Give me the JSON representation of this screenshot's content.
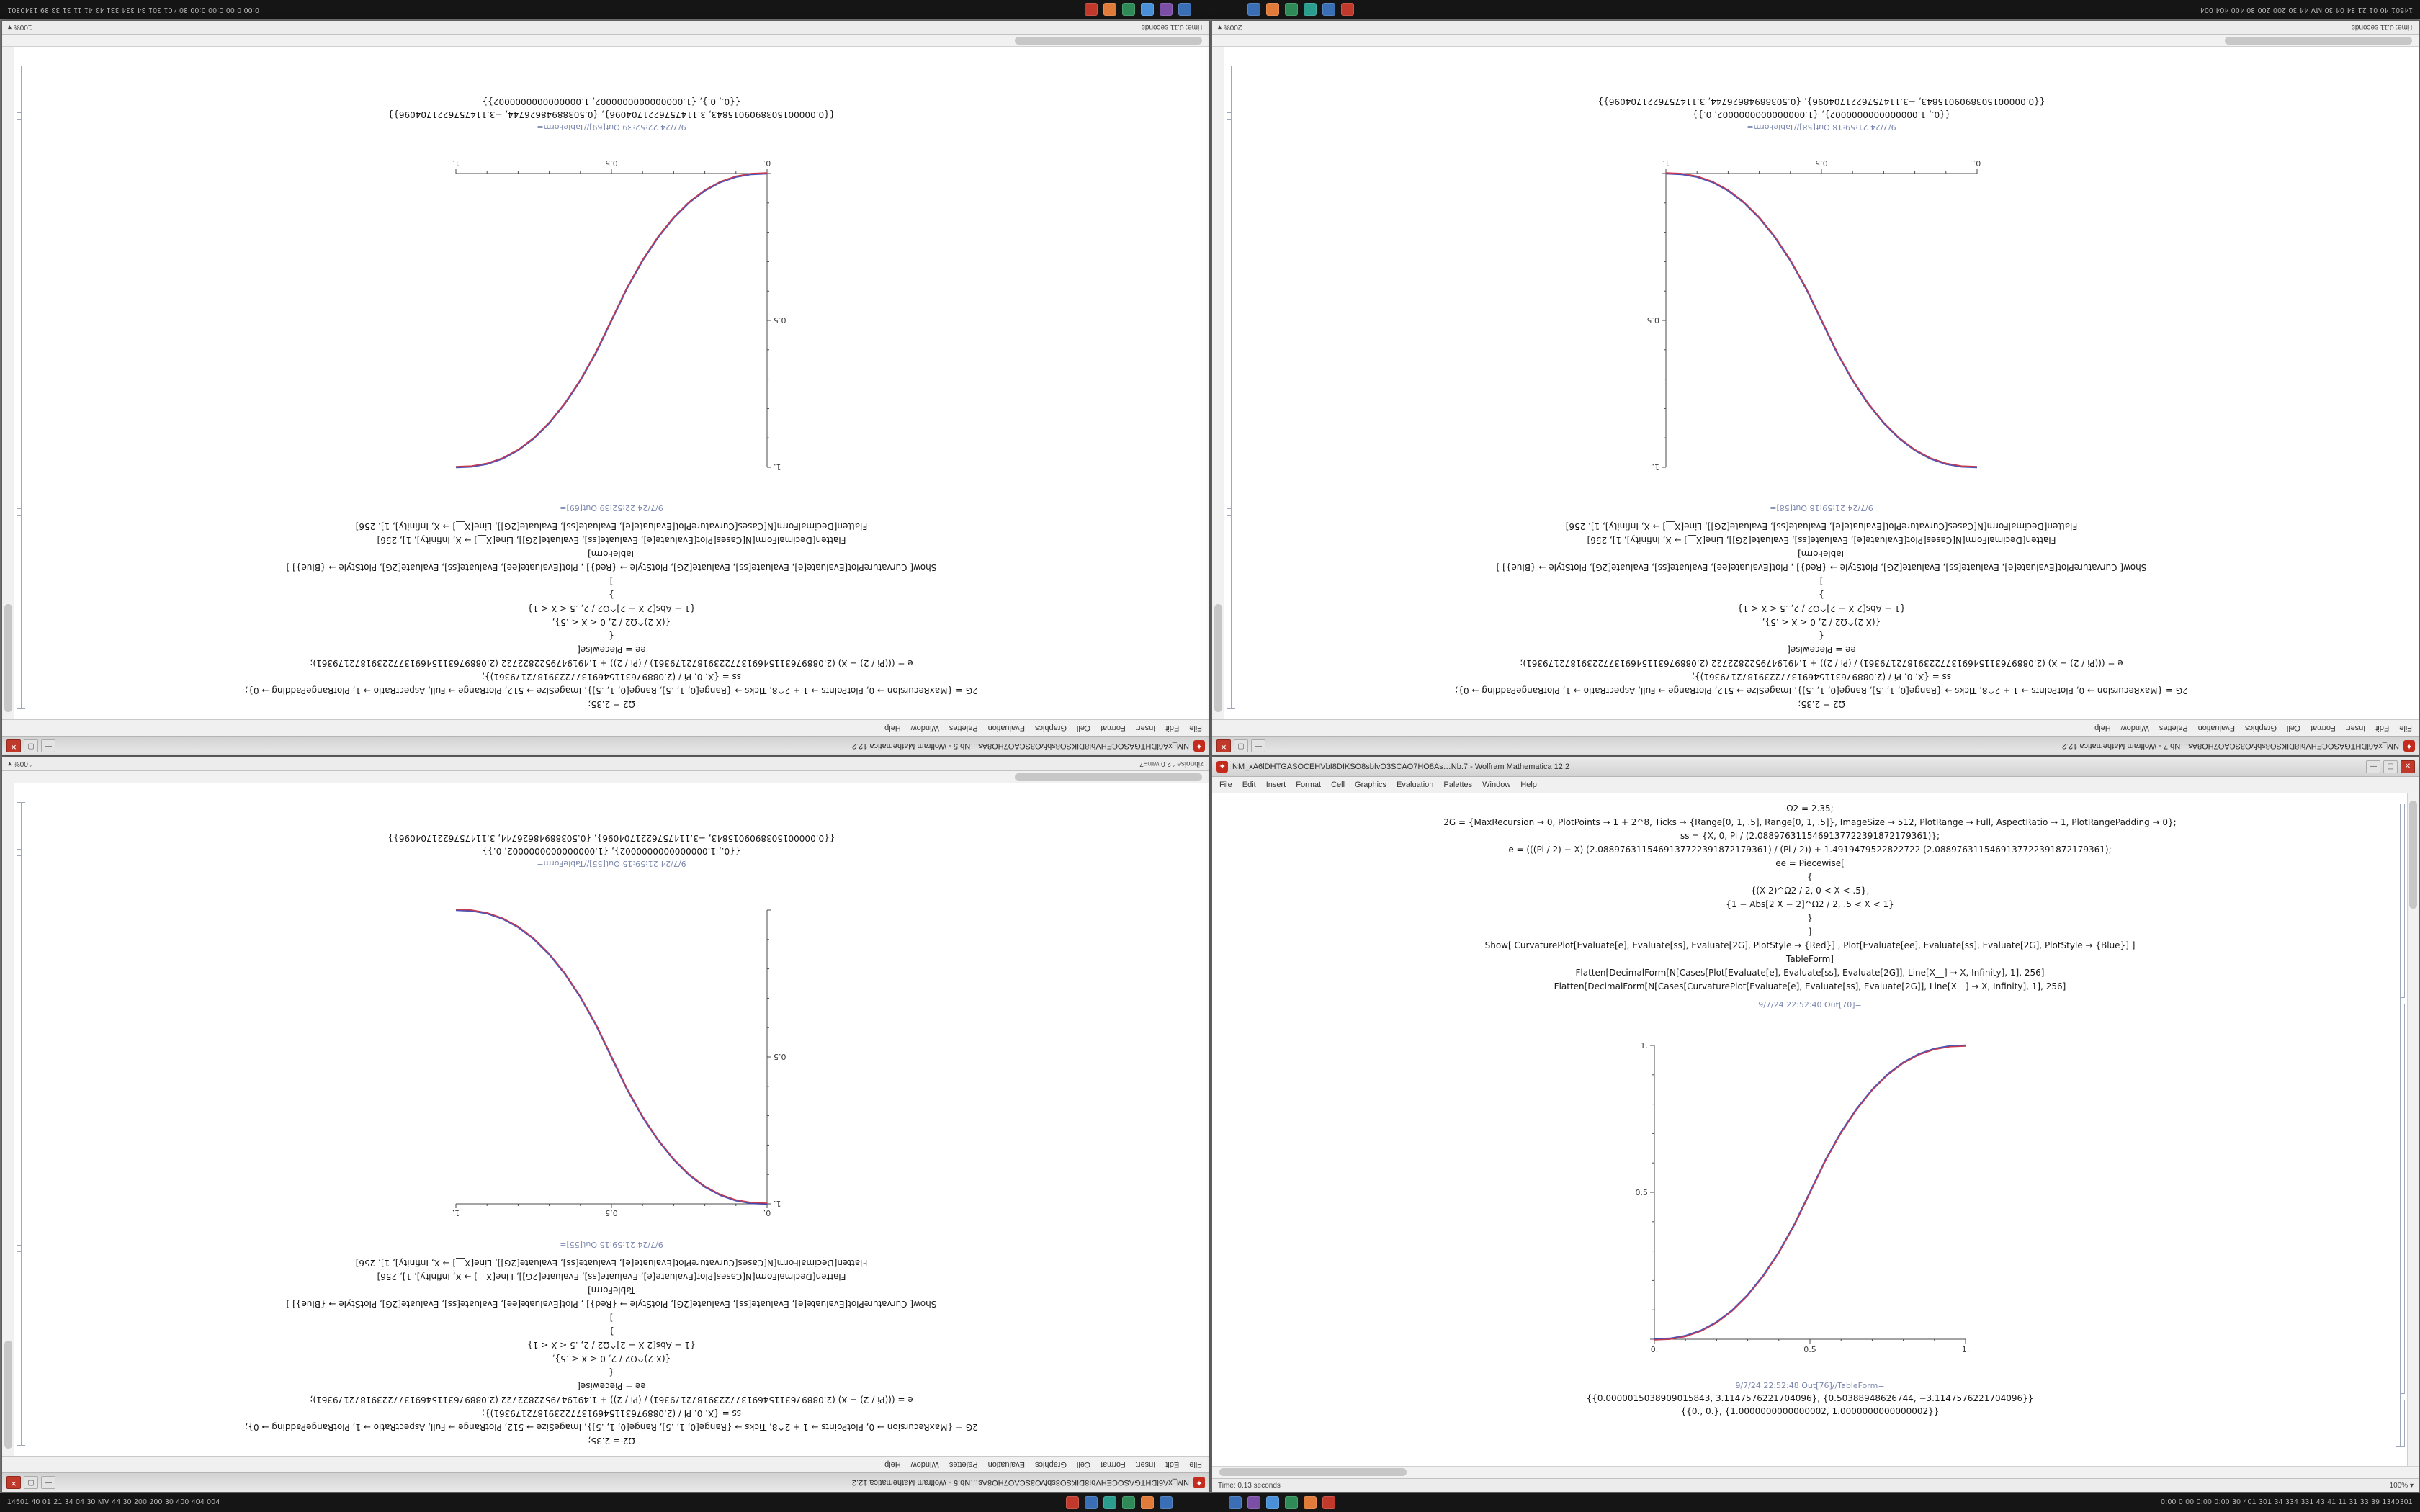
{
  "taskbar": {
    "left_text": "14501 40 01 21 34 04 30 MV 44 30 200 200 30 400 404 004",
    "right_text": "0:00 0:00 0:00 0:00 30 401 301 34 334 331 43 41 11 31 33 39 1340301",
    "clusters": [
      [
        "#c0392b",
        "#3b6fb5",
        "#2a9d8f",
        "#2e8b57",
        "#e07b39",
        "#3b6fb5"
      ],
      [
        "#3b6fb5",
        "#7b4fa6",
        "#4a90d9",
        "#2e8b57",
        "#e07b39",
        "#c0392b"
      ]
    ]
  },
  "menu": [
    "File",
    "Edit",
    "Insert",
    "Format",
    "Cell",
    "Graphics",
    "Evaluation",
    "Palettes",
    "Window",
    "Help"
  ],
  "shared_code": [
    "Ω2 = 2.35;",
    "2G = {MaxRecursion → 0, PlotPoints → 1 + 2^8, Ticks → {Range[0, 1, .5], Range[0, 1, .5]}, ImageSize → 512, PlotRange → Full, AspectRatio → 1, PlotRangePadding → 0};",
    "ss = {X, 0, Pi / (2.0889763115469137722391872179361)};",
    "e = (((Pi / 2) − X) (2.0889763115469137722391872179361) / (Pi / 2)) + 1.4919479522822722 (2.0889763115469137722391872179361);",
    "ee = Piecewise[",
    "{",
    "{(X 2)^Ω2 / 2, 0 < X < .5},",
    "{1 − Abs[2 X − 2]^Ω2 / 2, .5 < X < 1}",
    "}",
    "]",
    "Show[ CurvaturePlot[Evaluate[e], Evaluate[ss], Evaluate[2G], PlotStyle → {Red}] , Plot[Evaluate[ee], Evaluate[ss], Evaluate[2G], PlotStyle → {Blue}] ]",
    "TableForm]",
    "Flatten[DecimalForm[N[Cases[Plot[Evaluate[e], Evaluate[ss], Evaluate[2G]], Line[X__] → X, Infinity], 1], 256]",
    "Flatten[DecimalForm[N[Cases[CurvaturePlot[Evaluate[e], Evaluate[ss], Evaluate[2G]], Line[X__] → X, Infinity], 1], 256]"
  ],
  "windows": [
    {
      "position": "top-left",
      "flipped": true,
      "title": "NM_xA6lDHTGASOCEHVbI8DIKSO8sbfvO3SCAO7HO8As…Nb.5 - Wolfram Mathematica 12.2",
      "out_label": "9/7/24 22:52:39 Out[69]=",
      "table_label": "9/7/24 22:52:39 Out[69]//TableForm=",
      "outputs": [
        "{{0.0000015038909015843, 3.1147576221704096}, {0.50388948626744, −3.1147576221704096}}",
        "{{0., 0.}, {1.0000000000000002, 1.0000000000000002}}"
      ],
      "status_left": "Time: 0.11 seconds",
      "status_right": "100%",
      "plot": {
        "chart": 0,
        "v_side": "left",
        "h_side": "bottom"
      }
    },
    {
      "position": "top-right",
      "flipped": true,
      "title": "NM_xA6lDHTGASOCEHVbI8DIKSO8sbfvO3SCAO7HO8As…Nb.7 - Wolfram Mathematica 12.2",
      "out_label": "9/7/24 21:59:18 Out[58]=",
      "table_label": "9/7/24 21:59:18 Out[58]//TableForm=",
      "outputs": [
        "{{0., 1.0000000000000002}, {1.0000000000000002, 0.}}",
        "{{0.0000015038909015843, −3.1147576221704096}, {0.50388948626744, 3.1147576221704096}}"
      ],
      "status_left": "Time: 0.11 seconds",
      "status_right": "200%",
      "plot": {
        "chart": 1,
        "v_side": "right",
        "h_side": "bottom"
      }
    },
    {
      "position": "bottom-left",
      "flipped": true,
      "title": "NM_xA6lDHTGASOCEHVbI8DIKSO8sbfvO3SCAO7HO8As…Nb.5 - Wolfram Mathematica 12.2",
      "out_label": "9/7/24 21:59:15 Out[55]=",
      "table_label": "9/7/24 21:59:15 Out[55]//TableForm=",
      "outputs": [
        "{{0., 1.0000000000000002}, {1.0000000000000002, 0.}}",
        "{{0.0000015038909015843, −3.1147576221704096}, {0.50388948626744, 3.1147576221704096}}"
      ],
      "status_left": "zibnoise 12.0 wm=7",
      "status_right": "100%",
      "plot": {
        "chart": 2,
        "v_side": "left",
        "h_side": "top"
      }
    },
    {
      "position": "bottom-right",
      "flipped": false,
      "title": "NM_xA6lDHTGASOCEHVbI8DIKSO8sbfvO3SCAO7HO8As…Nb.7 - Wolfram Mathematica 12.2",
      "out_label": "9/7/24 22:52:40 Out[70]=",
      "table_label": "9/7/24 22:52:48 Out[76]//TableForm=",
      "outputs": [
        "{{0.0000015038909015843, 3.1147576221704096}, {0.50388948626744, −3.1147576221704096}}",
        "{{0., 0.}, {1.0000000000000002, 1.0000000000000002}}"
      ],
      "status_left": "Time: 0.13 seconds",
      "status_right": "100%",
      "plot": {
        "chart": 3,
        "v_side": "left",
        "h_side": "bottom"
      }
    }
  ],
  "chart_data": [
    {
      "type": "line",
      "title": "",
      "xlabel": "",
      "ylabel": "",
      "x": [
        0,
        0.05,
        0.1,
        0.15,
        0.2,
        0.25,
        0.3,
        0.35,
        0.4,
        0.45,
        0.5,
        0.55,
        0.6,
        0.65,
        0.7,
        0.75,
        0.8,
        0.85,
        0.9,
        0.95,
        1
      ],
      "series": [
        {
          "name": "CurvaturePlot (Red)",
          "color": "#c43a52",
          "values": [
            0,
            0.0022,
            0.0114,
            0.0295,
            0.058,
            0.0981,
            0.1506,
            0.2163,
            0.2959,
            0.3903,
            0.5,
            0.6097,
            0.7041,
            0.7837,
            0.8494,
            0.9019,
            0.942,
            0.9705,
            0.9886,
            0.9978,
            1
          ]
        },
        {
          "name": "Plot (Blue)",
          "color": "#3a43b0",
          "values": [
            0,
            0.0022,
            0.0114,
            0.0295,
            0.058,
            0.0981,
            0.1506,
            0.2163,
            0.2959,
            0.3903,
            0.5,
            0.6097,
            0.7041,
            0.7837,
            0.8494,
            0.9019,
            0.942,
            0.9705,
            0.9886,
            0.9978,
            1
          ]
        }
      ],
      "xlim": [
        0,
        1
      ],
      "ylim": [
        0,
        1
      ],
      "xticks": [
        "0.",
        "0.5",
        "1."
      ],
      "yticks": [
        "0.5",
        "1."
      ],
      "grid": false,
      "legend": "none"
    },
    {
      "type": "line",
      "title": "",
      "xlabel": "",
      "ylabel": "",
      "x": [
        0,
        0.05,
        0.1,
        0.15,
        0.2,
        0.25,
        0.3,
        0.35,
        0.4,
        0.45,
        0.5,
        0.55,
        0.6,
        0.65,
        0.7,
        0.75,
        0.8,
        0.85,
        0.9,
        0.95,
        1
      ],
      "series": [
        {
          "name": "CurvaturePlot (Red)",
          "color": "#c43a52",
          "values": [
            1,
            0.9978,
            0.9886,
            0.9705,
            0.942,
            0.9019,
            0.8494,
            0.7837,
            0.7041,
            0.6097,
            0.5,
            0.3903,
            0.2959,
            0.2163,
            0.1506,
            0.0981,
            0.058,
            0.0295,
            0.0114,
            0.0022,
            0
          ]
        },
        {
          "name": "Plot (Blue)",
          "color": "#3a43b0",
          "values": [
            1,
            0.9978,
            0.9886,
            0.9705,
            0.942,
            0.9019,
            0.8494,
            0.7837,
            0.7041,
            0.6097,
            0.5,
            0.3903,
            0.2959,
            0.2163,
            0.1506,
            0.0981,
            0.058,
            0.0295,
            0.0114,
            0.0022,
            0
          ]
        }
      ],
      "xlim": [
        0,
        1
      ],
      "ylim": [
        0,
        1
      ],
      "xticks": [
        "0.",
        "0.5",
        "1."
      ],
      "yticks": [
        "0.5",
        "1."
      ],
      "grid": false,
      "legend": "none"
    },
    {
      "type": "line",
      "title": "",
      "xlabel": "",
      "ylabel": "",
      "x": [
        0,
        0.05,
        0.1,
        0.15,
        0.2,
        0.25,
        0.3,
        0.35,
        0.4,
        0.45,
        0.5,
        0.55,
        0.6,
        0.65,
        0.7,
        0.75,
        0.8,
        0.85,
        0.9,
        0.95,
        1
      ],
      "series": [
        {
          "name": "CurvaturePlot (Red)",
          "color": "#c43a52",
          "values": [
            1,
            0.9978,
            0.9886,
            0.9705,
            0.942,
            0.9019,
            0.8494,
            0.7837,
            0.7041,
            0.6097,
            0.5,
            0.3903,
            0.2959,
            0.2163,
            0.1506,
            0.0981,
            0.058,
            0.0295,
            0.0114,
            0.0022,
            0
          ]
        },
        {
          "name": "Plot (Blue)",
          "color": "#3a43b0",
          "values": [
            1,
            0.9978,
            0.9886,
            0.9705,
            0.942,
            0.9019,
            0.8494,
            0.7837,
            0.7041,
            0.6097,
            0.5,
            0.3903,
            0.2959,
            0.2163,
            0.1506,
            0.0981,
            0.058,
            0.0295,
            0.0114,
            0.0022,
            0
          ]
        }
      ],
      "xlim": [
        0,
        1
      ],
      "ylim": [
        0,
        1
      ],
      "xticks": [
        "0.",
        "0.5",
        "1."
      ],
      "yticks": [
        "0.5",
        "1."
      ],
      "grid": false,
      "legend": "none"
    },
    {
      "type": "line",
      "title": "",
      "xlabel": "",
      "ylabel": "",
      "x": [
        0,
        0.05,
        0.1,
        0.15,
        0.2,
        0.25,
        0.3,
        0.35,
        0.4,
        0.45,
        0.5,
        0.55,
        0.6,
        0.65,
        0.7,
        0.75,
        0.8,
        0.85,
        0.9,
        0.95,
        1
      ],
      "series": [
        {
          "name": "CurvaturePlot (Red)",
          "color": "#c43a52",
          "values": [
            0,
            0.0022,
            0.0114,
            0.0295,
            0.058,
            0.0981,
            0.1506,
            0.2163,
            0.2959,
            0.3903,
            0.5,
            0.6097,
            0.7041,
            0.7837,
            0.8494,
            0.9019,
            0.942,
            0.9705,
            0.9886,
            0.9978,
            1
          ]
        },
        {
          "name": "Plot (Blue)",
          "color": "#3a43b0",
          "values": [
            0,
            0.0022,
            0.0114,
            0.0295,
            0.058,
            0.0981,
            0.1506,
            0.2163,
            0.2959,
            0.3903,
            0.5,
            0.6097,
            0.7041,
            0.7837,
            0.8494,
            0.9019,
            0.942,
            0.9705,
            0.9886,
            0.9978,
            1
          ]
        }
      ],
      "xlim": [
        0,
        1
      ],
      "ylim": [
        0,
        1
      ],
      "xticks": [
        "0.",
        "0.5",
        "1."
      ],
      "yticks": [
        "0.5",
        "1."
      ],
      "grid": false,
      "legend": "none"
    }
  ]
}
